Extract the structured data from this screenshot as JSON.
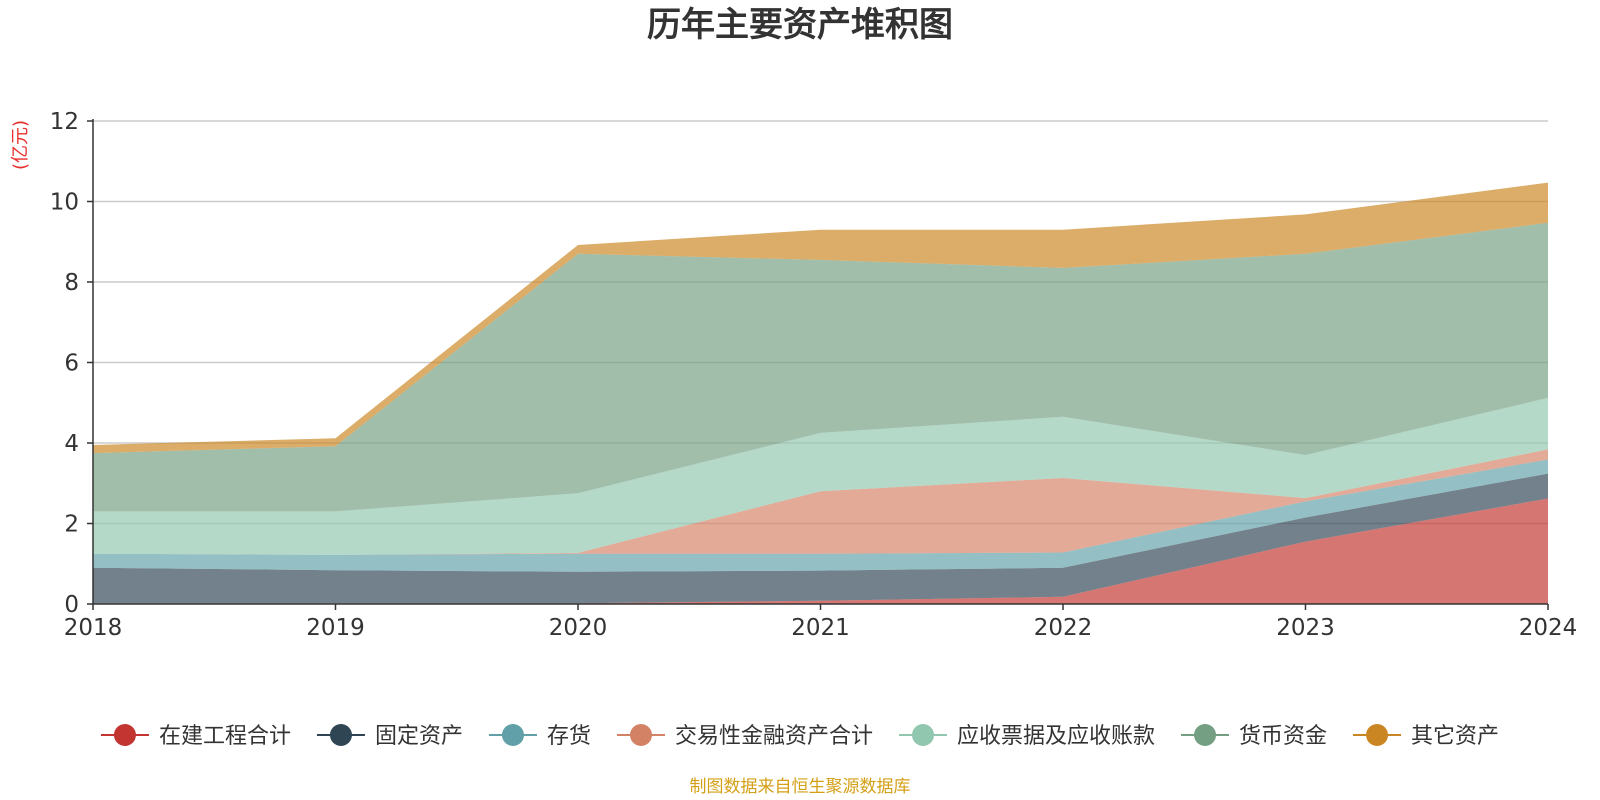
{
  "chart_data": {
    "type": "area",
    "stacked": true,
    "title": "历年主要资产堆积图",
    "ylabel": "(亿元)",
    "xlabel": "",
    "ylim": [
      0,
      12
    ],
    "yticks": [
      0,
      2,
      4,
      6,
      8,
      10,
      12
    ],
    "categories": [
      "2018",
      "2019",
      "2020",
      "2021",
      "2022",
      "2023",
      "2024"
    ],
    "grid": true,
    "legend_position": "bottom",
    "series": [
      {
        "name": "在建工程合计",
        "color": "#c23531",
        "values": [
          0.02,
          0.02,
          0.02,
          0.08,
          0.18,
          1.55,
          2.62
        ]
      },
      {
        "name": "固定资产",
        "color": "#2f4554",
        "values": [
          0.88,
          0.82,
          0.78,
          0.75,
          0.72,
          0.6,
          0.62
        ]
      },
      {
        "name": "存货",
        "color": "#61a0a8",
        "values": [
          0.35,
          0.38,
          0.45,
          0.42,
          0.38,
          0.4,
          0.35
        ]
      },
      {
        "name": "交易性金融资产合计",
        "color": "#d48265",
        "values": [
          0.0,
          0.0,
          0.02,
          1.55,
          1.85,
          0.08,
          0.25
        ]
      },
      {
        "name": "应收票据及应收账款",
        "color": "#91c7ae",
        "values": [
          1.05,
          1.08,
          1.48,
          1.45,
          1.52,
          1.07,
          1.28
        ]
      },
      {
        "name": "货币资金",
        "color": "#749f83",
        "values": [
          1.45,
          1.62,
          5.95,
          4.3,
          3.7,
          5.0,
          4.35
        ]
      },
      {
        "name": "其它资产",
        "color": "#ca8622",
        "values": [
          0.2,
          0.2,
          0.22,
          0.75,
          0.95,
          0.98,
          1.0
        ]
      }
    ]
  },
  "footer": {
    "source": "制图数据来自恒生聚源数据库"
  }
}
